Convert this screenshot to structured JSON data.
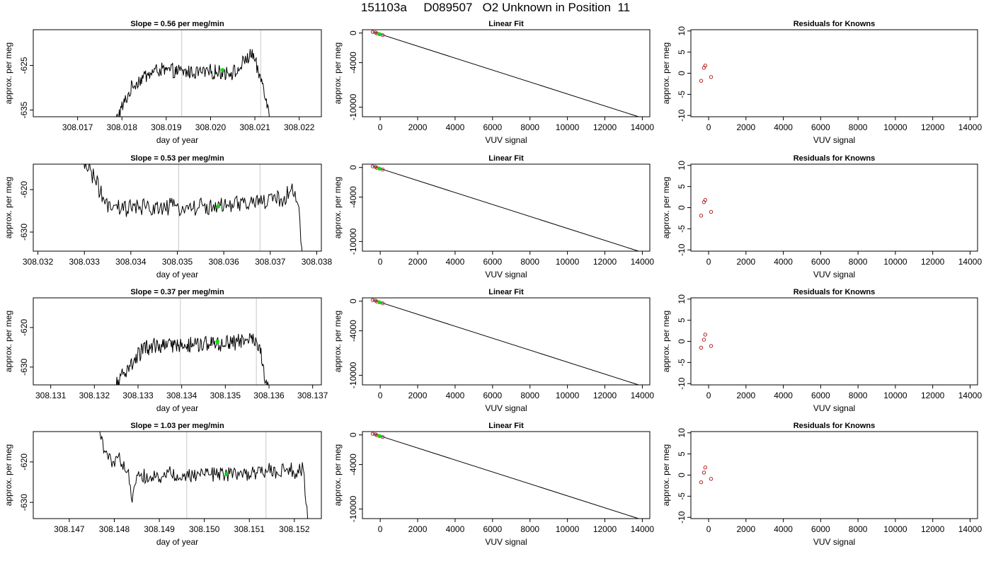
{
  "figure_title": "151103a     D089507   O2 Unknown in Position  11",
  "colors": {
    "trace": "#000000",
    "guide": "#c8c8c8",
    "highlight": "#00dd00",
    "known": "#b22222"
  },
  "chart_data": [
    {
      "type": "line",
      "row": 0,
      "col": 0,
      "title": "Slope =  0.56  per meg/min",
      "xlabel": "day of year",
      "ylabel": "approx. per meg",
      "xlim": [
        308.016,
        308.0225
      ],
      "ylim": [
        -636.5,
        -617.0
      ],
      "xticks": [
        "308.017",
        "308.018",
        "308.019",
        "308.020",
        "308.021",
        "308.022"
      ],
      "yticks": [
        "-625",
        "-635"
      ],
      "guides": [
        308.01935,
        308.02113
      ],
      "marker": {
        "x": 308.02027,
        "y": -626.0
      },
      "data_start": 308.01785,
      "data_end": 308.02135,
      "y_center": -626.0,
      "y_noise": 1.5,
      "points": [
        [
          308.01785,
          -637.5
        ],
        [
          308.018,
          -634.5
        ],
        [
          308.01825,
          -629.5
        ],
        [
          308.0185,
          -627.5
        ],
        [
          308.0188,
          -626.0
        ],
        [
          308.0194,
          -626.5
        ],
        [
          308.02,
          -626.5
        ],
        [
          308.0206,
          -626.5
        ],
        [
          308.0208,
          -623.5
        ],
        [
          308.02096,
          -622.5
        ],
        [
          308.02105,
          -626.0
        ],
        [
          308.0212,
          -629.5
        ],
        [
          308.02135,
          -637.5
        ]
      ]
    },
    {
      "type": "scatter+line",
      "row": 0,
      "col": 1,
      "title": "Linear Fit",
      "xlabel": "VUV signal",
      "ylabel": "approx. per meg",
      "xlim": [
        -950,
        14400
      ],
      "ylim": [
        -11300,
        450
      ],
      "xticks": [
        "0",
        "2000",
        "4000",
        "6000",
        "8000",
        "10000",
        "12000",
        "14000"
      ],
      "yticks": [
        "0",
        "-4000",
        "-10000"
      ],
      "fit_line": [
        [
          -400,
          170
        ],
        [
          13800,
          -11300
        ]
      ],
      "knowns": [
        [
          -400,
          150
        ],
        [
          -250,
          70
        ],
        [
          -180,
          -40
        ],
        [
          130,
          -280
        ]
      ],
      "unknown": [
        [
          -40,
          -150
        ]
      ]
    },
    {
      "type": "scatter",
      "row": 0,
      "col": 2,
      "title": "Residuals for Knowns",
      "xlabel": "VUV signal",
      "ylabel": "approx. per meg",
      "xlim": [
        -950,
        14400
      ],
      "ylim": [
        -10.3,
        10.3
      ],
      "xticks": [
        "0",
        "2000",
        "4000",
        "6000",
        "8000",
        "10000",
        "12000",
        "14000"
      ],
      "yticks": [
        "10",
        "5",
        "0",
        "-5",
        "-10"
      ],
      "knowns": [
        [
          -400,
          -1.8
        ],
        [
          -250,
          1.3
        ],
        [
          -180,
          1.8
        ],
        [
          130,
          -0.9
        ]
      ]
    },
    {
      "type": "line",
      "row": 1,
      "col": 0,
      "title": "Slope =  0.53  per meg/min",
      "xlabel": "day of year",
      "ylabel": "approx. per meg",
      "xlim": [
        308.0319,
        308.0381
      ],
      "ylim": [
        -634.5,
        -614.0
      ],
      "xticks": [
        "308.032",
        "308.033",
        "308.034",
        "308.035",
        "308.036",
        "308.037",
        "308.038"
      ],
      "yticks": [
        "-620",
        "-630"
      ],
      "guides": [
        308.03503,
        308.03678
      ],
      "marker": {
        "x": 308.03588,
        "y": -624.0
      },
      "data_start": 308.0329,
      "data_end": 308.0377,
      "y_center": -624.5,
      "y_noise": 2.0,
      "points": [
        [
          308.0329,
          -613.5
        ],
        [
          308.0331,
          -614.5
        ],
        [
          308.0332,
          -617.0
        ],
        [
          308.0333,
          -619.5
        ],
        [
          308.0334,
          -622.0
        ],
        [
          308.0335,
          -624.5
        ],
        [
          308.036,
          -624.0
        ],
        [
          308.0373,
          -622.0
        ],
        [
          308.03745,
          -620.0
        ],
        [
          308.0376,
          -622.5
        ],
        [
          308.0377,
          -637.0
        ]
      ]
    },
    {
      "type": "scatter+line",
      "row": 1,
      "col": 1,
      "title": "Linear Fit",
      "xlabel": "VUV signal",
      "ylabel": "approx. per meg",
      "xlim": [
        -950,
        14400
      ],
      "ylim": [
        -11300,
        450
      ],
      "xticks": [
        "0",
        "2000",
        "4000",
        "6000",
        "8000",
        "10000",
        "12000",
        "14000"
      ],
      "yticks": [
        "0",
        "-4000",
        "-10000"
      ],
      "fit_line": [
        [
          -400,
          170
        ],
        [
          13800,
          -11300
        ]
      ],
      "knowns": [
        [
          -400,
          150
        ],
        [
          -250,
          70
        ],
        [
          -180,
          -40
        ],
        [
          130,
          -280
        ]
      ],
      "unknown": [
        [
          -40,
          -150
        ]
      ]
    },
    {
      "type": "scatter",
      "row": 1,
      "col": 2,
      "title": "Residuals for Knowns",
      "xlabel": "VUV signal",
      "ylabel": "approx. per meg",
      "xlim": [
        -950,
        14400
      ],
      "ylim": [
        -10.3,
        10.3
      ],
      "xticks": [
        "0",
        "2000",
        "4000",
        "6000",
        "8000",
        "10000",
        "12000",
        "14000"
      ],
      "yticks": [
        "10",
        "5",
        "0",
        "-5",
        "-10"
      ],
      "knowns": [
        [
          -400,
          -1.9
        ],
        [
          -250,
          1.3
        ],
        [
          -180,
          1.8
        ],
        [
          130,
          -1.0
        ]
      ]
    },
    {
      "type": "line",
      "row": 2,
      "col": 0,
      "title": "Slope =  0.37  per meg/min",
      "xlabel": "day of year",
      "ylabel": "approx. per meg",
      "xlim": [
        308.1306,
        308.1372
      ],
      "ylim": [
        -634.5,
        -612.5
      ],
      "xticks": [
        "308.131",
        "308.132",
        "308.133",
        "308.134",
        "308.135",
        "308.136",
        "308.137"
      ],
      "yticks": [
        "-620",
        "-630"
      ],
      "guides": [
        308.13397,
        308.13571
      ],
      "marker": {
        "x": 308.13482,
        "y": -623.5
      },
      "data_start": 308.1325,
      "data_end": 308.136,
      "y_center": -624.0,
      "y_noise": 2.0,
      "points": [
        [
          308.1325,
          -635.0
        ],
        [
          308.1326,
          -632.5
        ],
        [
          308.1328,
          -630.0
        ],
        [
          308.133,
          -627.0
        ],
        [
          308.1332,
          -625.0
        ],
        [
          308.135,
          -624.0
        ],
        [
          308.1357,
          -623.0
        ],
        [
          308.1358,
          -625.5
        ],
        [
          308.13595,
          -635.0
        ]
      ]
    },
    {
      "type": "scatter+line",
      "row": 2,
      "col": 1,
      "title": "Linear Fit",
      "xlabel": "VUV signal",
      "ylabel": "approx. per meg",
      "xlim": [
        -950,
        14400
      ],
      "ylim": [
        -11300,
        450
      ],
      "xticks": [
        "0",
        "2000",
        "4000",
        "6000",
        "8000",
        "10000",
        "12000",
        "14000"
      ],
      "yticks": [
        "0",
        "-4000",
        "-10000"
      ],
      "fit_line": [
        [
          -400,
          170
        ],
        [
          13800,
          -11300
        ]
      ],
      "knowns": [
        [
          -400,
          150
        ],
        [
          -250,
          70
        ],
        [
          -180,
          -40
        ],
        [
          130,
          -280
        ]
      ],
      "unknown": [
        [
          -40,
          -150
        ]
      ]
    },
    {
      "type": "scatter",
      "row": 2,
      "col": 2,
      "title": "Residuals for Knowns",
      "xlabel": "VUV signal",
      "ylabel": "approx. per meg",
      "xlim": [
        -950,
        14400
      ],
      "ylim": [
        -10.3,
        10.3
      ],
      "xticks": [
        "0",
        "2000",
        "4000",
        "6000",
        "8000",
        "10000",
        "12000",
        "14000"
      ],
      "yticks": [
        "10",
        "5",
        "0",
        "-5",
        "-10"
      ],
      "knowns": [
        [
          -400,
          -1.5
        ],
        [
          -250,
          0.4
        ],
        [
          -180,
          1.6
        ],
        [
          130,
          -1.1
        ]
      ]
    },
    {
      "type": "line",
      "row": 3,
      "col": 0,
      "title": "Slope =  1.03  per meg/min",
      "xlabel": "day of year",
      "ylabel": "approx. per meg",
      "xlim": [
        308.1462,
        308.1526
      ],
      "ylim": [
        -634.0,
        -612.5
      ],
      "xticks": [
        "308.147",
        "308.148",
        "308.149",
        "308.150",
        "308.151",
        "308.152"
      ],
      "yticks": [
        "-620",
        "-630"
      ],
      "guides": [
        308.14961,
        308.15137
      ],
      "marker": {
        "x": 308.15049,
        "y": -623.0
      },
      "data_start": 308.1476,
      "data_end": 308.1523,
      "y_center": -623.5,
      "y_noise": 1.8,
      "points": [
        [
          308.1476,
          -610.0
        ],
        [
          308.14775,
          -616.0
        ],
        [
          308.1479,
          -619.5
        ],
        [
          308.1481,
          -619.0
        ],
        [
          308.1483,
          -622.5
        ],
        [
          308.1484,
          -629.0
        ],
        [
          308.1485,
          -623.5
        ],
        [
          308.1522,
          -622.0
        ],
        [
          308.1523,
          -635.0
        ]
      ]
    },
    {
      "type": "scatter+line",
      "row": 3,
      "col": 1,
      "title": "Linear Fit",
      "xlabel": "VUV signal",
      "ylabel": "approx. per meg",
      "xlim": [
        -950,
        14400
      ],
      "ylim": [
        -11300,
        450
      ],
      "xticks": [
        "0",
        "2000",
        "4000",
        "6000",
        "8000",
        "10000",
        "12000",
        "14000"
      ],
      "yticks": [
        "0",
        "-4000",
        "-10000"
      ],
      "fit_line": [
        [
          -400,
          170
        ],
        [
          13800,
          -11300
        ]
      ],
      "knowns": [
        [
          -400,
          150
        ],
        [
          -250,
          70
        ],
        [
          -180,
          -40
        ],
        [
          130,
          -280
        ]
      ],
      "unknown": [
        [
          -40,
          -150
        ]
      ]
    },
    {
      "type": "scatter",
      "row": 3,
      "col": 2,
      "title": "Residuals for Knowns",
      "xlabel": "VUV signal",
      "ylabel": "approx. per meg",
      "xlim": [
        -950,
        14400
      ],
      "ylim": [
        -10.3,
        10.3
      ],
      "xticks": [
        "0",
        "2000",
        "4000",
        "6000",
        "8000",
        "10000",
        "12000",
        "14000"
      ],
      "yticks": [
        "10",
        "5",
        "0",
        "-5",
        "-10"
      ],
      "knowns": [
        [
          -400,
          -1.7
        ],
        [
          -250,
          0.6
        ],
        [
          -180,
          1.8
        ],
        [
          130,
          -0.9
        ]
      ]
    }
  ]
}
